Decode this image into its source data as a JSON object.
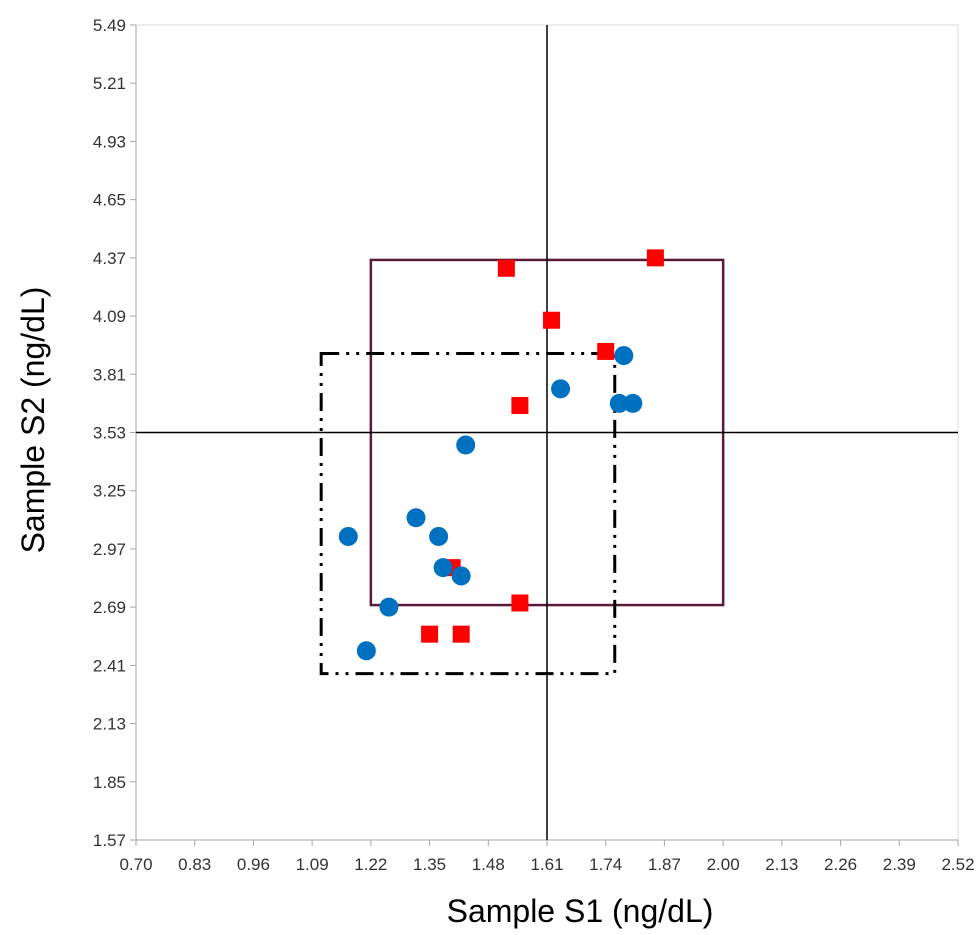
{
  "chart_data": {
    "type": "scatter",
    "xlabel": "Sample S1 (ng/dL)",
    "ylabel": "Sample S2 (ng/dL)",
    "xlim": [
      0.7,
      2.52
    ],
    "ylim": [
      1.57,
      5.49
    ],
    "x_ticks": [
      "0.70",
      "0.83",
      "0.96",
      "1.09",
      "1.22",
      "1.35",
      "1.48",
      "1.61",
      "1.74",
      "1.87",
      "2.00",
      "2.13",
      "2.26",
      "2.39",
      "2.52"
    ],
    "y_ticks": [
      "1.57",
      "1.85",
      "2.13",
      "2.41",
      "2.69",
      "2.97",
      "3.25",
      "3.53",
      "3.81",
      "4.09",
      "4.37",
      "4.65",
      "4.93",
      "5.21",
      "5.49"
    ],
    "grid": false,
    "reference_lines": {
      "x": 1.61,
      "y": 3.53
    },
    "series": [
      {
        "marker": "circle",
        "color": "#0070c0",
        "points": [
          [
            1.17,
            3.03
          ],
          [
            1.21,
            2.48
          ],
          [
            1.26,
            2.69
          ],
          [
            1.32,
            3.12
          ],
          [
            1.37,
            3.03
          ],
          [
            1.38,
            2.88
          ],
          [
            1.42,
            2.84
          ],
          [
            1.43,
            3.47
          ],
          [
            1.64,
            3.74
          ],
          [
            1.78,
            3.9
          ],
          [
            1.77,
            3.67
          ],
          [
            1.8,
            3.67
          ]
        ]
      },
      {
        "marker": "square",
        "color": "#ff0000",
        "points": [
          [
            1.52,
            4.32
          ],
          [
            1.55,
            3.66
          ],
          [
            1.55,
            2.71
          ],
          [
            1.62,
            4.07
          ],
          [
            1.74,
            3.92
          ],
          [
            1.85,
            4.37
          ],
          [
            1.35,
            2.56
          ],
          [
            1.42,
            2.56
          ],
          [
            1.4,
            2.88
          ]
        ]
      }
    ],
    "regions": [
      {
        "style": "solid",
        "color": "#5c1a3a",
        "x": [
          1.22,
          2.0
        ],
        "y": [
          2.7,
          4.36
        ]
      },
      {
        "style": "dash-dot-dot",
        "color": "#000000",
        "x": [
          1.11,
          1.76
        ],
        "y": [
          2.37,
          3.91
        ]
      }
    ]
  }
}
